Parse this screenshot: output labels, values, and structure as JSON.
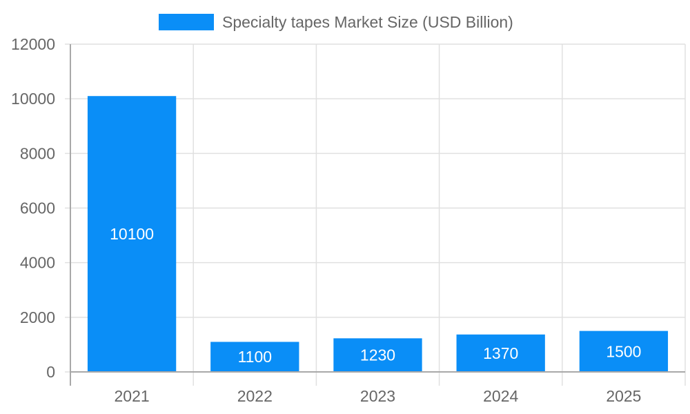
{
  "legend": {
    "label": "Specialty tapes Market Size (USD Billion)",
    "color": "#0a8ef7"
  },
  "chart_data": {
    "type": "bar",
    "title": "",
    "categories": [
      "2021",
      "2022",
      "2023",
      "2024",
      "2025"
    ],
    "series": [
      {
        "name": "Specialty tapes Market Size (USD Billion)",
        "values": [
          10100,
          1100,
          1230,
          1370,
          1500
        ],
        "color": "#0a8ef7"
      }
    ],
    "values": [
      10100,
      1100,
      1230,
      1370,
      1500
    ],
    "xlabel": "",
    "ylabel": "",
    "ylim": [
      0,
      12000
    ],
    "yticks": [
      0,
      2000,
      4000,
      6000,
      8000,
      10000,
      12000
    ],
    "grid": true,
    "legend_position": "top",
    "data_labels": true
  }
}
